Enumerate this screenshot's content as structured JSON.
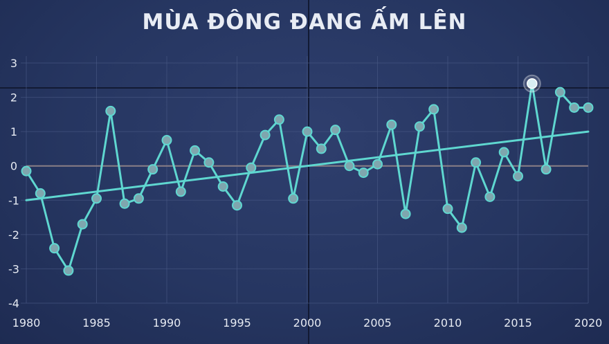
{
  "chart_data": {
    "type": "line",
    "title": "MÙA ĐÔNG ĐANG ẤM LÊN",
    "xlabel": "",
    "ylabel": "",
    "xlim": [
      1980,
      2020
    ],
    "ylim": [
      -4,
      3
    ],
    "x_ticks": [
      "1980",
      "1985",
      "1990",
      "1995",
      "2000",
      "2005",
      "2010",
      "2015",
      "2020"
    ],
    "y_ticks": [
      "3",
      "2",
      "1",
      "0",
      "-1",
      "-2",
      "-3",
      "-4"
    ],
    "grid": true,
    "colors": {
      "line": "#5fd7d0",
      "marker": "#7fa6ae",
      "zero_line": "#8a7f86",
      "grid": "#4a5a86"
    },
    "series": [
      {
        "x": [
          1980,
          1981,
          1982,
          1983,
          1984,
          1985,
          1986,
          1987,
          1988,
          1989,
          1990,
          1991,
          1992,
          1993,
          1994,
          1995,
          1996,
          1997,
          1998,
          1999,
          2000,
          2001,
          2002,
          2003,
          2004,
          2005,
          2006,
          2007,
          2008,
          2009,
          2010,
          2011,
          2012,
          2013,
          2014,
          2015,
          2016,
          2017,
          2018,
          2019,
          2020
        ],
        "values": [
          -0.15,
          -0.8,
          -2.4,
          -3.05,
          -1.7,
          -0.95,
          1.6,
          -1.1,
          -0.95,
          -0.1,
          0.75,
          -0.75,
          0.45,
          0.1,
          -0.6,
          -1.15,
          -0.05,
          0.9,
          1.35,
          -0.95,
          1.0,
          0.5,
          1.05,
          0.0,
          -0.2,
          0.05,
          1.2,
          -1.4,
          1.15,
          1.65,
          -1.25,
          -1.8,
          0.1,
          -0.9,
          0.4,
          -0.3,
          2.4,
          -0.1,
          2.15,
          1.7,
          1.7
        ]
      },
      {
        "x": [
          1980,
          2020
        ],
        "values": [
          -1.0,
          1.0
        ]
      }
    ],
    "highlight_year": 2016
  }
}
